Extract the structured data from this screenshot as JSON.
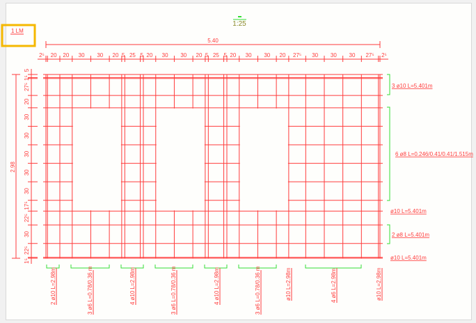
{
  "drawing": {
    "title": "1 LM",
    "scale": "1:25",
    "total_width_label": "5.40",
    "total_height_label": "2.98",
    "colors": {
      "rebar": "#ff3b3b",
      "bracket": "#33dd33",
      "scale": "#8a8a2a",
      "selection": "#f5b800"
    },
    "horizontal_dims": [
      "2⁵",
      "20",
      "20",
      "30",
      "30",
      "20",
      "5",
      "25",
      "5",
      "20",
      "30",
      "30",
      "20",
      "5",
      "25",
      "5",
      "20",
      "30",
      "30",
      "20",
      "27⁵",
      "30",
      "30",
      "30",
      "27⁵",
      "2⁵"
    ],
    "horizontal_dim_values": [
      2.5,
      20,
      20,
      30,
      30,
      20,
      5,
      25,
      5,
      20,
      30,
      30,
      20,
      5,
      25,
      5,
      20,
      30,
      30,
      20,
      27.5,
      30,
      30,
      30,
      27.5,
      2.5
    ],
    "vertical_dims": [
      "5",
      "1⁵",
      "27⁵",
      "20",
      "30",
      "30",
      "30",
      "30",
      "30",
      "17⁵",
      "22⁵",
      "30",
      "22⁵",
      "1⁵"
    ],
    "vertical_dim_values": [
      5,
      1.5,
      27.5,
      20,
      30,
      30,
      30,
      30,
      30,
      17.5,
      22.5,
      30,
      22.5,
      1.5
    ],
    "right_labels": [
      {
        "text": "3 ø10 L=5.401m"
      },
      {
        "text": "6 ø8 L=0.246/0.41/0.41/1.515m"
      },
      {
        "text": "ø10 L=5.401m"
      },
      {
        "text": "2 ø8 L=5.401m"
      },
      {
        "text": "ø10 L=5.401m"
      }
    ],
    "bottom_labels": [
      {
        "text": "2 ø10 L=2.98m"
      },
      {
        "text": "3 ø6 L=0.78/0.36 m"
      },
      {
        "text": "4 ø10 L=2.98m"
      },
      {
        "text": "3 ø6 L=0.78/0.36 m"
      },
      {
        "text": "4 ø10 L=2.98m"
      },
      {
        "text": "3 ø6 L=0.78/0.36 m"
      },
      {
        "text": "ø10 L=2.98m"
      },
      {
        "text": "4 ø6 L=2.98m"
      },
      {
        "text": "ø10 L=2.98m"
      }
    ]
  }
}
